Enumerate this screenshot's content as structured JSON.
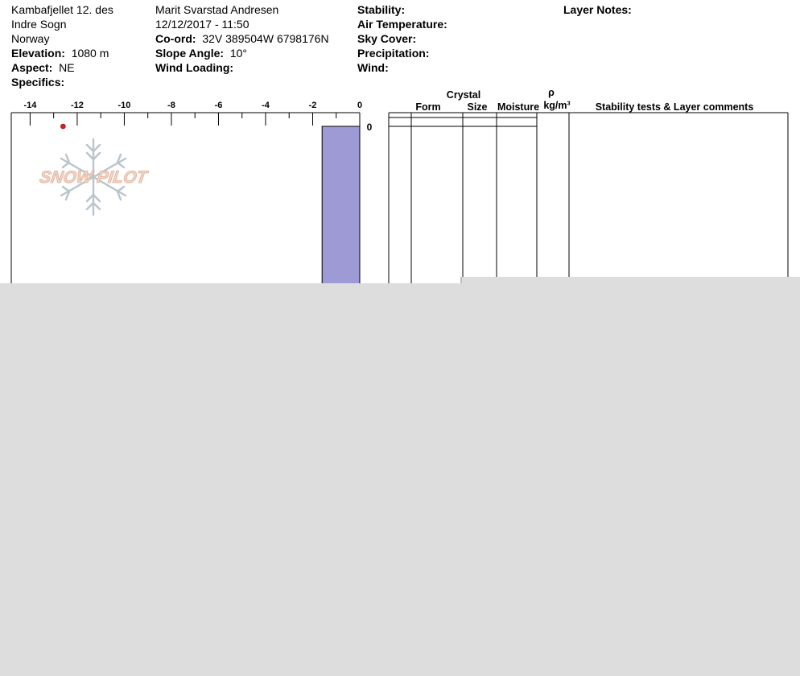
{
  "site": {
    "location_line1": "Kambafjellet 12. des",
    "location_line2": "Indre Sogn",
    "country": "Norway",
    "elevation_label": "Elevation:",
    "elevation_value": "1080 m",
    "aspect_label": "Aspect:",
    "aspect_value": "NE",
    "specifics_label": "Specifics:"
  },
  "observer": {
    "name": "Marit Svarstad Andresen",
    "datetime": "12/12/2017 - 11:50",
    "coord_label": "Co-ord:",
    "coord_value": "32V 389504W 6798176N",
    "slope_label": "Slope Angle:",
    "slope_value": "10°",
    "wind_loading_label": "Wind Loading:"
  },
  "conditions": {
    "stability_label": "Stability:",
    "air_temp_label": "Air Temperature:",
    "sky_cover_label": "Sky Cover:",
    "precip_label": "Precipitation:",
    "wind_label": "Wind:"
  },
  "layer_notes_label": "Layer Notes:",
  "watermark": "SNOW PILOT",
  "table_headers": {
    "crystal": "Crystal",
    "form": "Form",
    "size": "Size",
    "moisture": "Moisture",
    "rho": "ρ",
    "density_unit": "kg/m³",
    "comments": "Stability tests & Layer comments"
  },
  "colors": {
    "hardness_bar": "#9e9ad6",
    "temp_point": "#d0202a",
    "background_overlay": "#dddddd"
  },
  "chart_data": {
    "type": "bar",
    "x_axis_ticks": [
      -14,
      -12,
      -10,
      -8,
      -6,
      -4,
      -2,
      0
    ],
    "xlim": [
      -14.8,
      0
    ],
    "depth_ticks": [
      0
    ],
    "hardness_layers": [
      {
        "top": 0,
        "bottom_visible": true,
        "value": -1.6
      }
    ],
    "temperature_points": [
      {
        "temp": -12.6,
        "depth": 0
      }
    ]
  }
}
